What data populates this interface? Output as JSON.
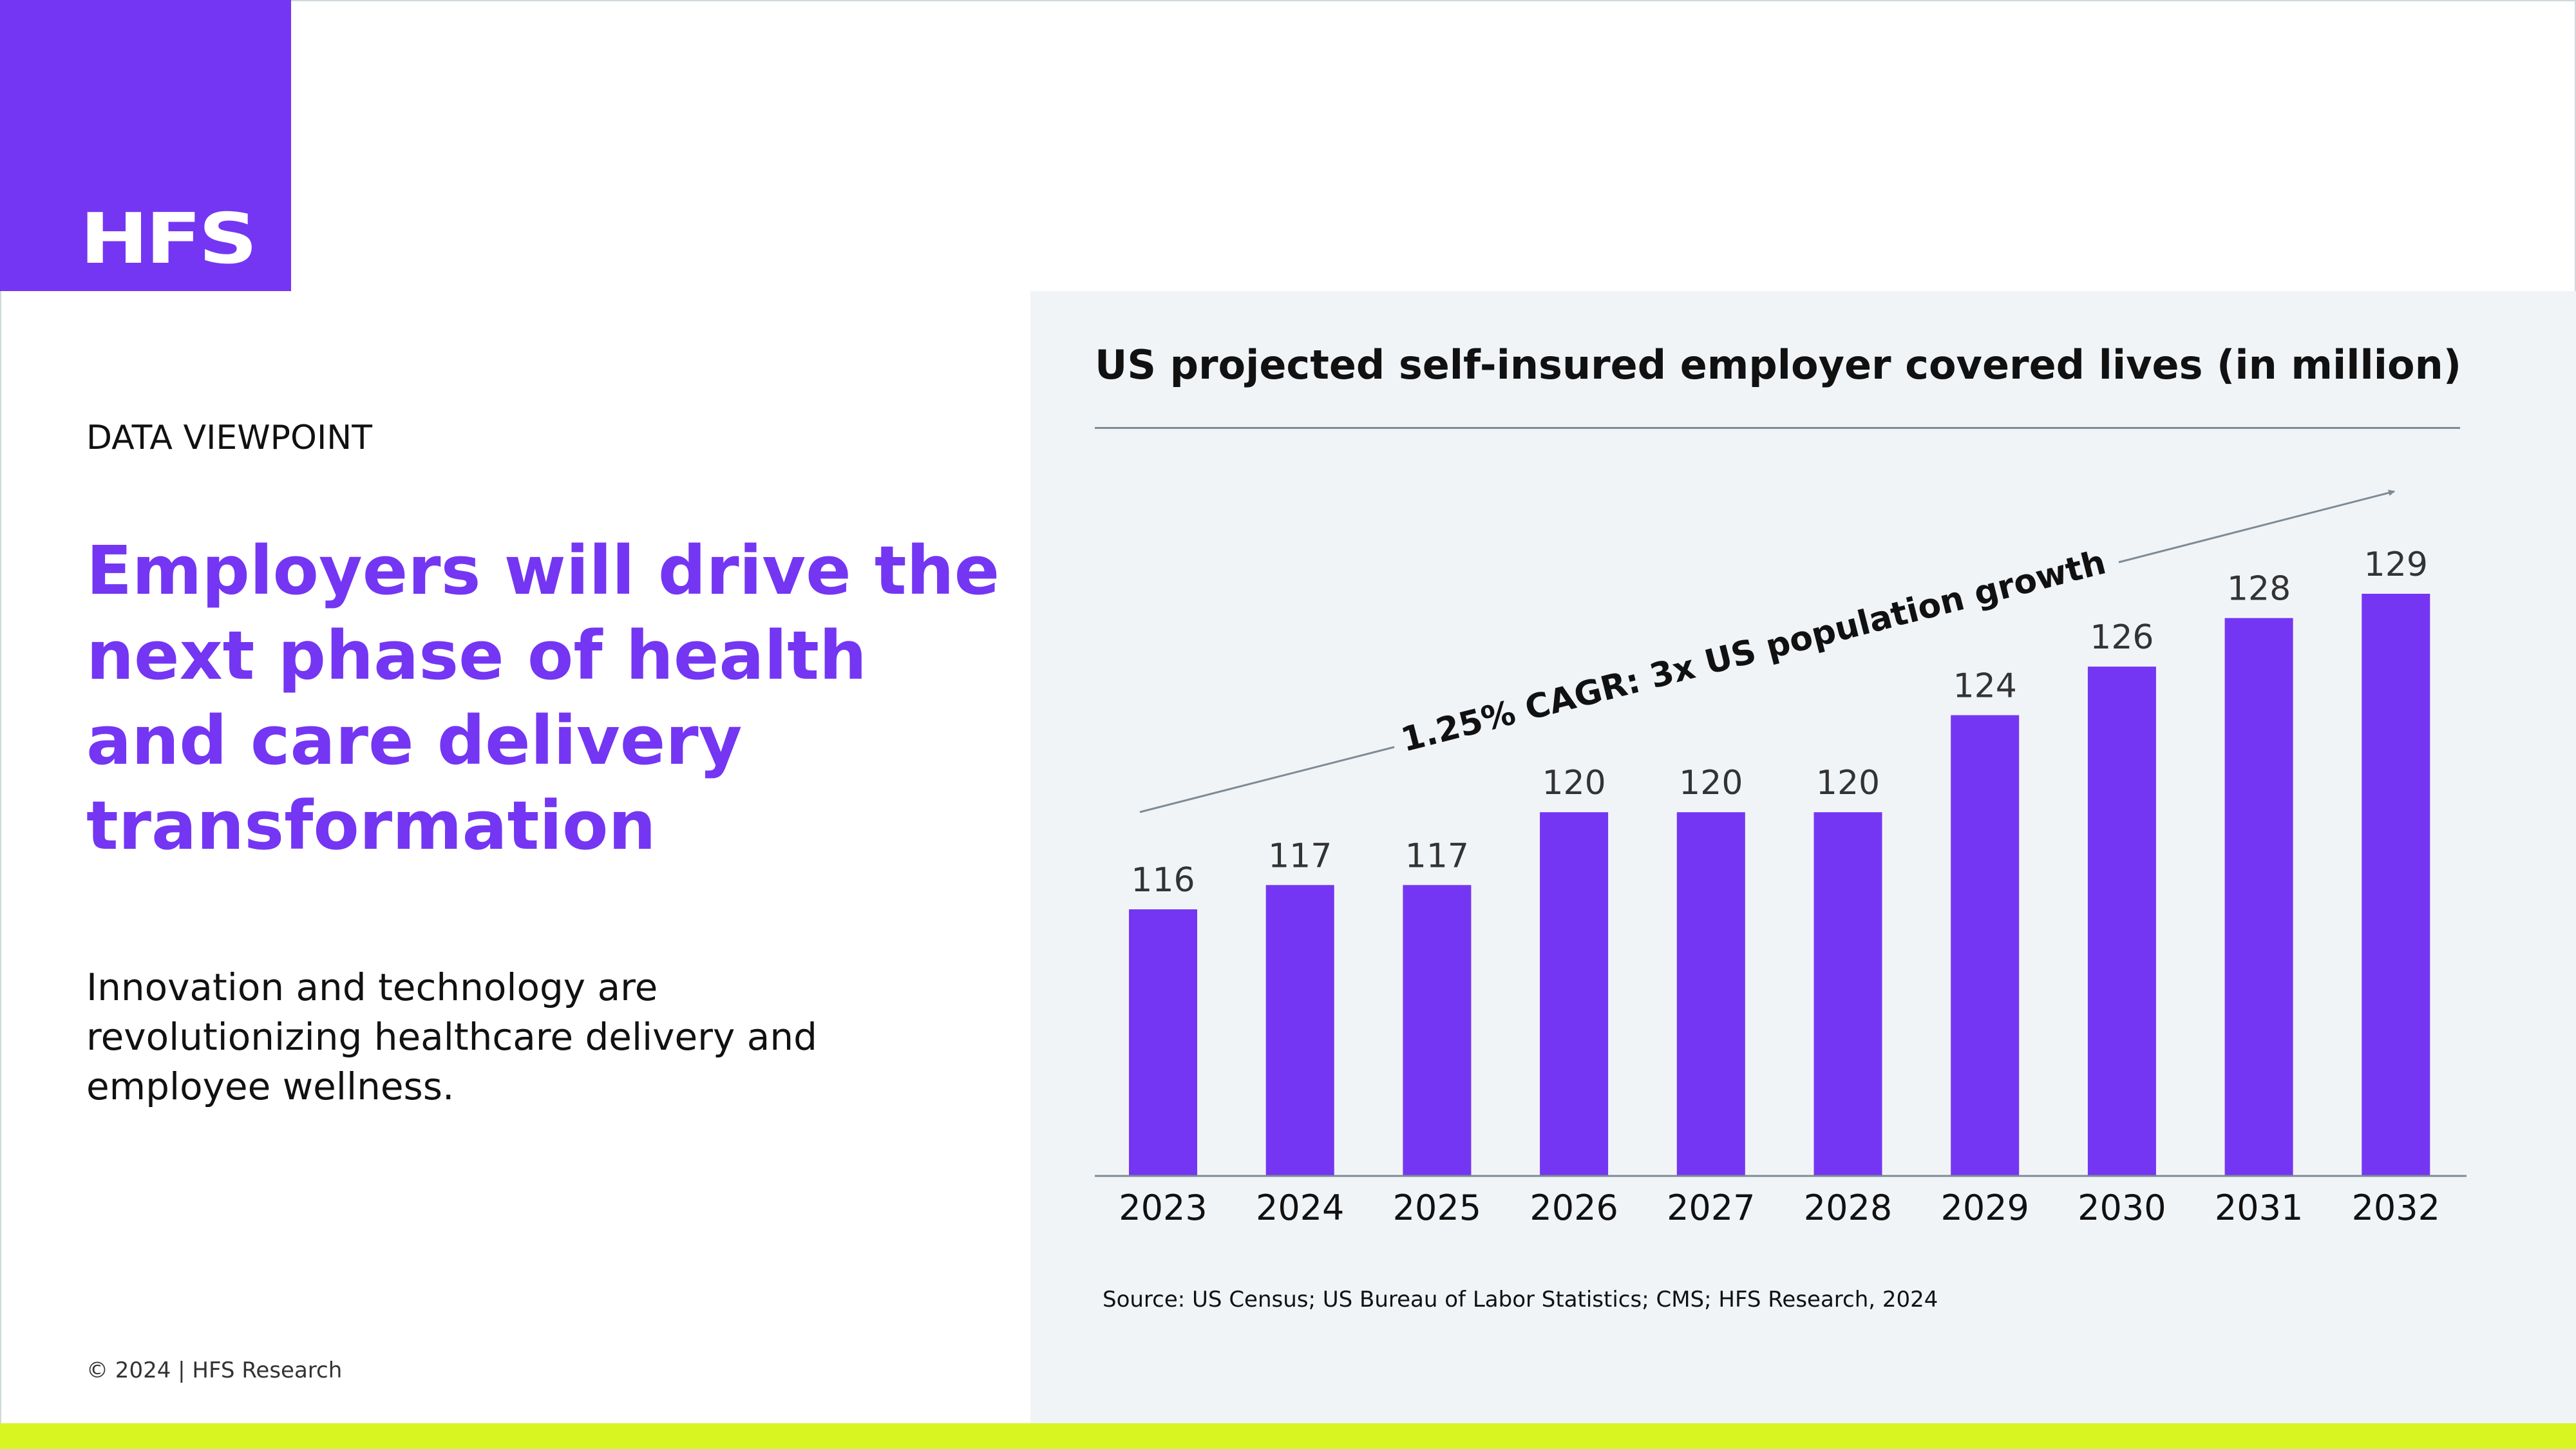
{
  "brand": {
    "logo_text": "HFS",
    "accent_color": "#7436f3",
    "bottom_bar_color": "#d8f522",
    "panel_color": "#f1f4f7"
  },
  "left": {
    "eyebrow": "DATA VIEWPOINT",
    "headline": "Employers will drive the next phase of health and care delivery transformation",
    "body": "Innovation and technology are revolutionizing healthcare delivery and employee wellness.",
    "copyright": "© 2024 | HFS Research"
  },
  "chart_data": {
    "type": "bar",
    "title": "US projected self-insured employer covered lives (in million)",
    "categories": [
      "2023",
      "2024",
      "2025",
      "2026",
      "2027",
      "2028",
      "2029",
      "2030",
      "2031",
      "2032"
    ],
    "values": [
      116,
      117,
      117,
      120,
      120,
      120,
      124,
      126,
      128,
      129
    ],
    "bar_color": "#7436f3",
    "annotation": "1.25% CAGR: 3x US population growth",
    "data_labels": true,
    "grid": false,
    "legend": "none"
  },
  "source": "Source: US Census; US Bureau of Labor Statistics; CMS; HFS Research, 2024"
}
